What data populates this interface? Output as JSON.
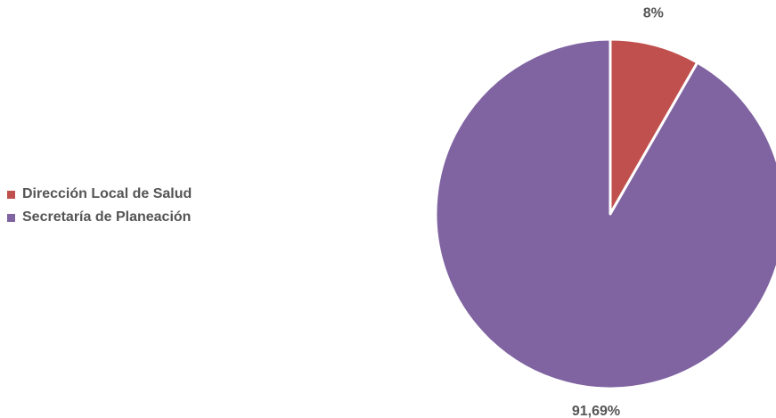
{
  "chart_data": {
    "type": "pie",
    "categories": [
      "Dirección Local de Salud",
      "Secretaría de Planeación"
    ],
    "values": [
      8.31,
      91.69
    ],
    "data_labels": [
      "8%",
      "91,69%"
    ],
    "colors": [
      "#c0504d",
      "#8064a2"
    ],
    "legend_position": "left",
    "title": ""
  }
}
